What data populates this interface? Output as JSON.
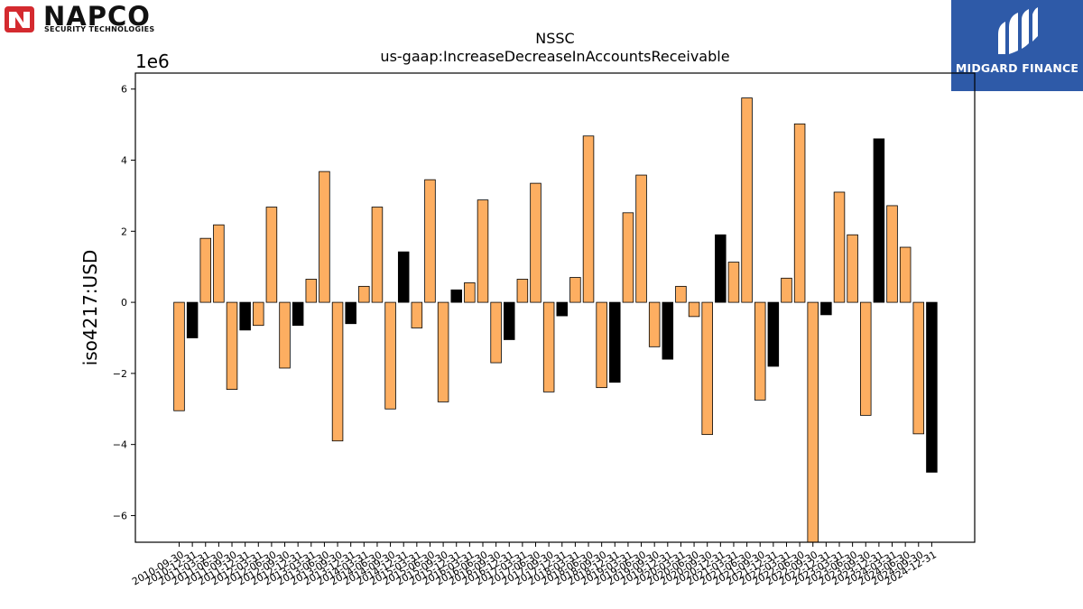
{
  "logos": {
    "left_name": "NAPCO",
    "left_subtitle": "SECURITY TECHNOLOGIES",
    "right_name": "MIDGARD FINANCE"
  },
  "chart_data": {
    "type": "bar",
    "title": "NSSC",
    "subtitle": "us-gaap:IncreaseDecreaseInAccountsReceivable",
    "ylabel": "iso4217:USD",
    "xlabel": "",
    "scale_label": "1e6",
    "ylim": [
      -6.75,
      6.45
    ],
    "yticks": [
      -6,
      -4,
      -2,
      0,
      2,
      4,
      6
    ],
    "ytick_labels": [
      "−6",
      "−4",
      "−2",
      "0",
      "2",
      "4",
      "6"
    ],
    "grid": false,
    "colors": {
      "default": "#fdae61",
      "highlight": "#000000"
    },
    "categories": [
      "2010-09-30",
      "2010-12-31",
      "2011-03-31",
      "2011-06-30",
      "2011-09-30",
      "2011-12-31",
      "2012-03-31",
      "2012-06-30",
      "2012-09-30",
      "2012-12-31",
      "2013-03-31",
      "2013-06-30",
      "2013-09-30",
      "2013-12-31",
      "2014-03-31",
      "2014-06-30",
      "2014-09-30",
      "2014-12-31",
      "2015-03-31",
      "2015-06-30",
      "2015-09-30",
      "2015-12-31",
      "2016-03-31",
      "2016-06-30",
      "2016-09-30",
      "2016-12-31",
      "2017-03-31",
      "2017-06-30",
      "2017-09-30",
      "2017-12-31",
      "2018-03-31",
      "2018-06-30",
      "2018-09-30",
      "2018-12-31",
      "2019-03-31",
      "2019-06-30",
      "2019-09-30",
      "2019-12-31",
      "2020-03-31",
      "2020-06-30",
      "2020-09-30",
      "2020-12-31",
      "2021-03-31",
      "2021-06-30",
      "2021-09-30",
      "2021-12-31",
      "2022-03-31",
      "2022-06-30",
      "2022-09-30",
      "2022-12-31",
      "2023-03-31",
      "2023-06-30",
      "2023-09-30",
      "2023-12-31",
      "2024-03-31",
      "2024-06-30",
      "2024-09-30",
      "2024-12-31"
    ],
    "values": [
      -3.05,
      -1.0,
      1.8,
      2.18,
      -2.45,
      -0.78,
      -0.65,
      2.68,
      -1.85,
      -0.65,
      0.65,
      3.68,
      -3.9,
      -0.6,
      0.45,
      2.68,
      -3.0,
      1.42,
      -0.72,
      3.45,
      -2.8,
      0.35,
      0.55,
      2.88,
      -1.7,
      -1.05,
      0.65,
      3.35,
      -2.52,
      -0.38,
      0.7,
      4.68,
      -2.4,
      -2.25,
      2.52,
      3.58,
      -1.25,
      -1.6,
      0.45,
      -0.4,
      -3.72,
      1.9,
      1.13,
      5.75,
      -2.75,
      -1.8,
      0.68,
      5.02,
      -6.75,
      -0.35,
      3.1,
      1.9,
      -3.18,
      4.6,
      2.72,
      1.55,
      -3.7,
      -4.78
    ],
    "highlight": [
      false,
      true,
      false,
      false,
      false,
      true,
      false,
      false,
      false,
      true,
      false,
      false,
      false,
      true,
      false,
      false,
      false,
      true,
      false,
      false,
      false,
      true,
      false,
      false,
      false,
      true,
      false,
      false,
      false,
      true,
      false,
      false,
      false,
      true,
      false,
      false,
      false,
      true,
      false,
      false,
      false,
      true,
      false,
      false,
      false,
      true,
      false,
      false,
      false,
      true,
      false,
      false,
      false,
      true,
      false,
      false,
      false,
      true
    ]
  }
}
